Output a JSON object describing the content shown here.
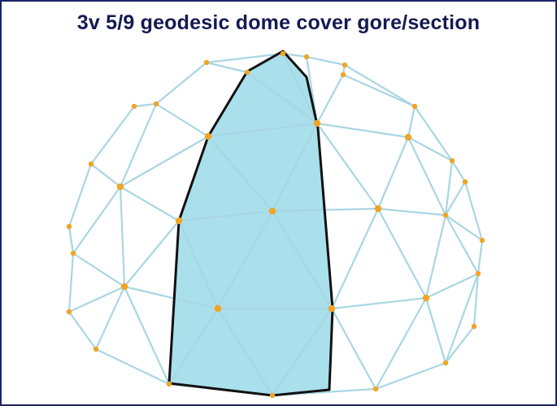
{
  "title": "3v 5/9 geodesic dome cover gore/section",
  "colors": {
    "frame": "#1c2566",
    "title": "#141a52",
    "strut": "#a9d6e3",
    "hub": "#f2a425",
    "gore_fill": "#a9e0ec",
    "gore_outline": "#111111"
  }
}
